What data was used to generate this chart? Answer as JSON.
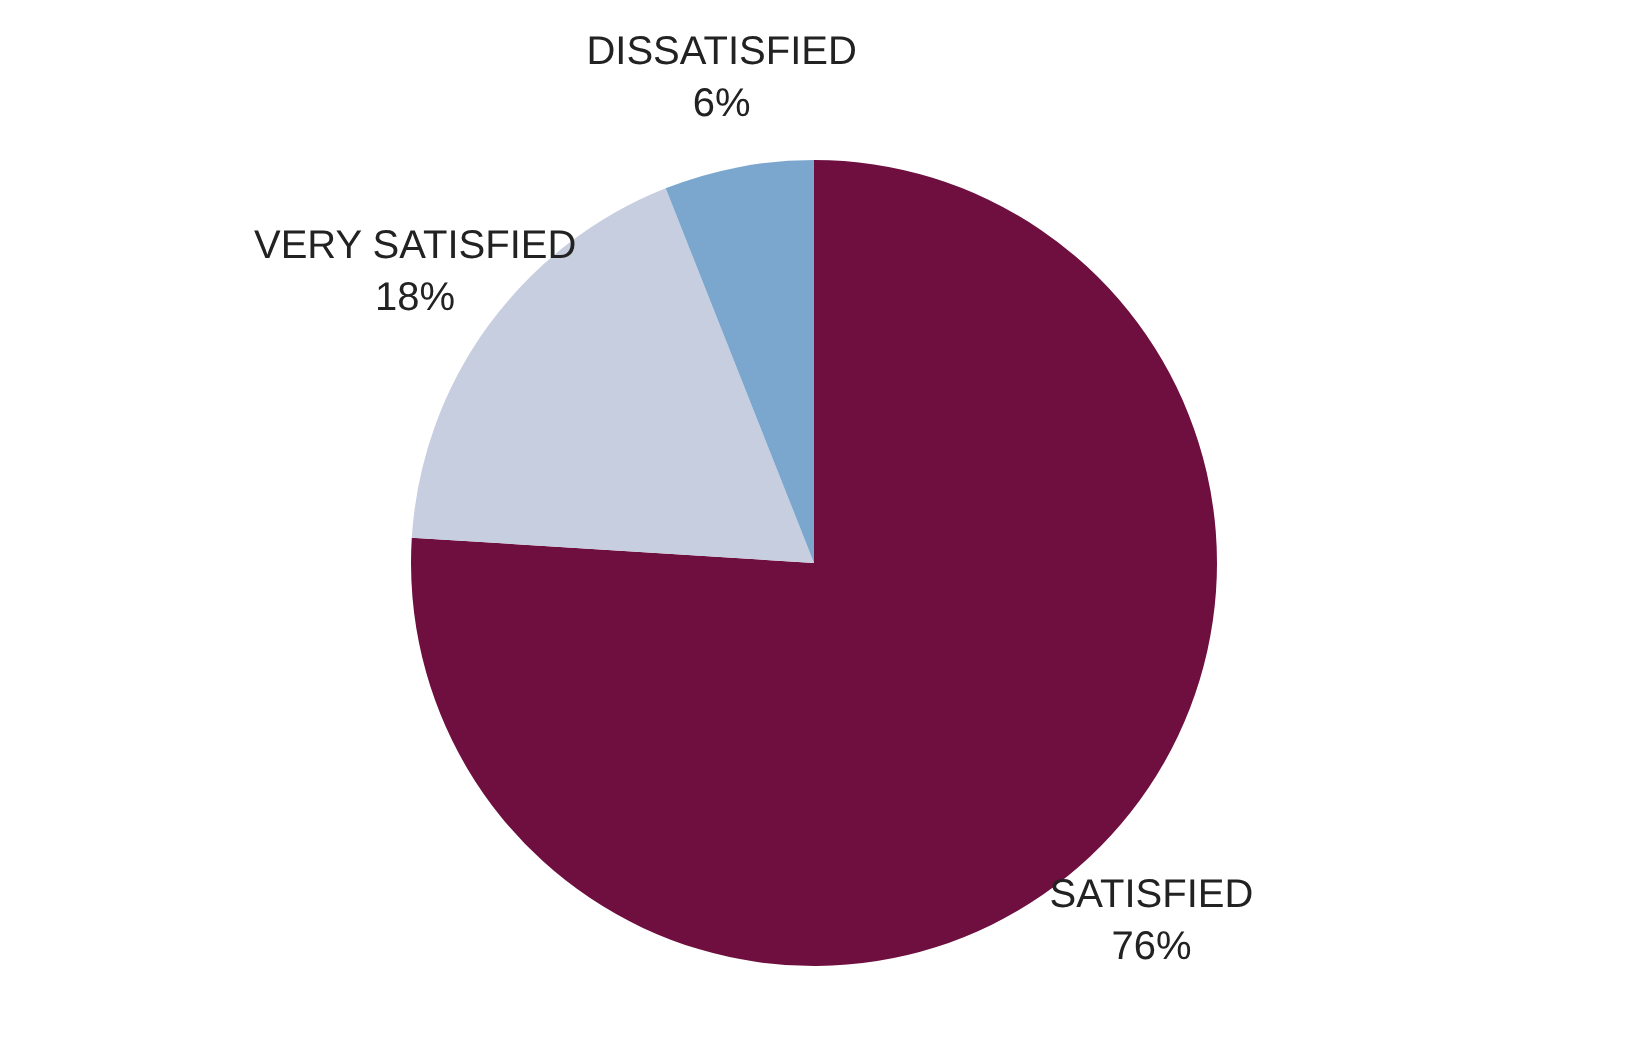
{
  "chart_data": {
    "type": "pie",
    "categories": [
      "SATISFIED",
      "VERY SATISFIED",
      "DISSATISFIED"
    ],
    "values": [
      76,
      18,
      6
    ],
    "colors": [
      "#6e0f3f",
      "#c7cedf",
      "#7ba7cf"
    ],
    "value_labels": [
      "76%",
      "18%",
      "6%"
    ]
  }
}
